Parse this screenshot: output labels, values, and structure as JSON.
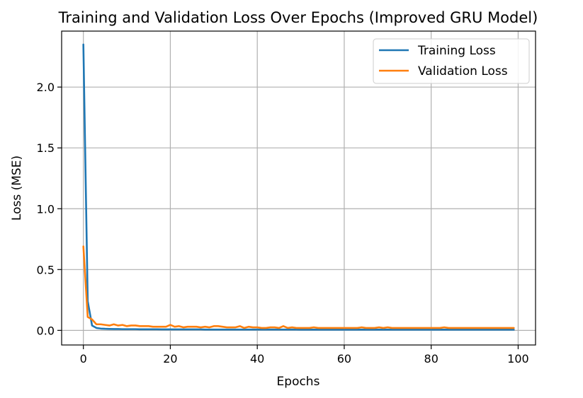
{
  "chart_data": {
    "type": "line",
    "title": "Training and Validation Loss Over Epochs (Improved GRU Model)",
    "xlabel": "Epochs",
    "ylabel": "Loss (MSE)",
    "xlim": [
      -5,
      104
    ],
    "ylim": [
      -0.12,
      2.46
    ],
    "grid": true,
    "legend_position": "top-right",
    "x_ticks": [
      0,
      20,
      40,
      60,
      80,
      100
    ],
    "x_tick_labels": [
      "0",
      "20",
      "40",
      "60",
      "80",
      "100"
    ],
    "y_ticks": [
      0.0,
      0.5,
      1.0,
      1.5,
      2.0
    ],
    "y_tick_labels": [
      "0.0",
      "0.5",
      "1.0",
      "1.5",
      "2.0"
    ],
    "series": [
      {
        "name": "Training Loss",
        "color": "#1f77b4",
        "x": [
          0,
          1,
          2,
          3,
          4,
          5,
          6,
          7,
          8,
          9,
          10,
          11,
          12,
          13,
          14,
          15,
          16,
          17,
          18,
          19,
          20,
          21,
          22,
          23,
          24,
          25,
          26,
          27,
          28,
          29,
          30,
          31,
          32,
          33,
          34,
          35,
          36,
          37,
          38,
          39,
          40,
          41,
          42,
          43,
          44,
          45,
          46,
          47,
          48,
          49,
          50,
          51,
          52,
          53,
          54,
          55,
          56,
          57,
          58,
          59,
          60,
          61,
          62,
          63,
          64,
          65,
          66,
          67,
          68,
          69,
          70,
          71,
          72,
          73,
          74,
          75,
          76,
          77,
          78,
          79,
          80,
          81,
          82,
          83,
          84,
          85,
          86,
          87,
          88,
          89,
          90,
          91,
          92,
          93,
          94,
          95,
          96,
          97,
          98,
          99
        ],
        "y": [
          2.35,
          0.24,
          0.04,
          0.02,
          0.015,
          0.013,
          0.012,
          0.011,
          0.011,
          0.01,
          0.01,
          0.01,
          0.01,
          0.009,
          0.009,
          0.009,
          0.009,
          0.009,
          0.008,
          0.008,
          0.008,
          0.008,
          0.008,
          0.008,
          0.008,
          0.008,
          0.008,
          0.008,
          0.007,
          0.007,
          0.007,
          0.007,
          0.007,
          0.007,
          0.007,
          0.007,
          0.007,
          0.007,
          0.007,
          0.007,
          0.007,
          0.007,
          0.007,
          0.007,
          0.007,
          0.007,
          0.007,
          0.007,
          0.007,
          0.007,
          0.006,
          0.006,
          0.006,
          0.006,
          0.006,
          0.006,
          0.006,
          0.006,
          0.006,
          0.006,
          0.006,
          0.006,
          0.006,
          0.006,
          0.006,
          0.006,
          0.006,
          0.006,
          0.006,
          0.006,
          0.006,
          0.006,
          0.006,
          0.006,
          0.006,
          0.006,
          0.006,
          0.006,
          0.006,
          0.006,
          0.006,
          0.006,
          0.006,
          0.006,
          0.006,
          0.006,
          0.006,
          0.006,
          0.006,
          0.006,
          0.006,
          0.006,
          0.006,
          0.006,
          0.006,
          0.006,
          0.006,
          0.006,
          0.006,
          0.006
        ]
      },
      {
        "name": "Validation Loss",
        "color": "#ff7f0e",
        "x": [
          0,
          1,
          2,
          3,
          4,
          5,
          6,
          7,
          8,
          9,
          10,
          11,
          12,
          13,
          14,
          15,
          16,
          17,
          18,
          19,
          20,
          21,
          22,
          23,
          24,
          25,
          26,
          27,
          28,
          29,
          30,
          31,
          32,
          33,
          34,
          35,
          36,
          37,
          38,
          39,
          40,
          41,
          42,
          43,
          44,
          45,
          46,
          47,
          48,
          49,
          50,
          51,
          52,
          53,
          54,
          55,
          56,
          57,
          58,
          59,
          60,
          61,
          62,
          63,
          64,
          65,
          66,
          67,
          68,
          69,
          70,
          71,
          72,
          73,
          74,
          75,
          76,
          77,
          78,
          79,
          80,
          81,
          82,
          83,
          84,
          85,
          86,
          87,
          88,
          89,
          90,
          91,
          92,
          93,
          94,
          95,
          96,
          97,
          98,
          99
        ],
        "y": [
          0.69,
          0.11,
          0.09,
          0.05,
          0.05,
          0.045,
          0.04,
          0.05,
          0.04,
          0.045,
          0.035,
          0.04,
          0.04,
          0.035,
          0.035,
          0.035,
          0.03,
          0.03,
          0.03,
          0.03,
          0.045,
          0.03,
          0.035,
          0.025,
          0.03,
          0.03,
          0.03,
          0.025,
          0.03,
          0.025,
          0.035,
          0.035,
          0.03,
          0.025,
          0.025,
          0.025,
          0.035,
          0.02,
          0.03,
          0.025,
          0.025,
          0.02,
          0.02,
          0.025,
          0.025,
          0.02,
          0.035,
          0.02,
          0.025,
          0.02,
          0.02,
          0.02,
          0.02,
          0.025,
          0.02,
          0.02,
          0.02,
          0.02,
          0.02,
          0.02,
          0.02,
          0.02,
          0.02,
          0.02,
          0.025,
          0.02,
          0.02,
          0.02,
          0.025,
          0.02,
          0.025,
          0.02,
          0.02,
          0.02,
          0.02,
          0.02,
          0.02,
          0.02,
          0.02,
          0.02,
          0.02,
          0.02,
          0.02,
          0.025,
          0.02,
          0.02,
          0.02,
          0.02,
          0.02,
          0.02,
          0.02,
          0.02,
          0.02,
          0.02,
          0.02,
          0.02,
          0.02,
          0.02,
          0.02,
          0.02
        ]
      }
    ]
  }
}
